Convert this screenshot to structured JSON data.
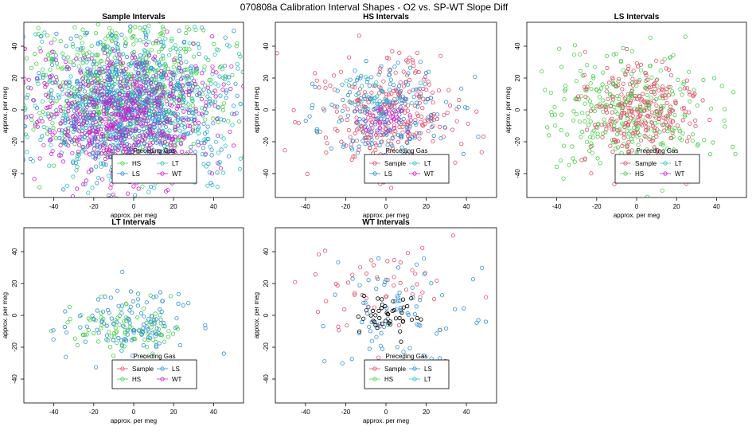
{
  "figure": {
    "title": "070808a   Calibration Interval Shapes - O2 vs. SP-WT Slope Diff"
  },
  "colors": {
    "Sample": "#e0506a",
    "HS": "#4ccf4c",
    "LS": "#2f8fd6",
    "LT": "#2ec4c4",
    "WT": "#cc22cc",
    "highlight": "#000000"
  },
  "chart_data": [
    {
      "type": "scatter",
      "id": "sample",
      "title": "Sample Intervals",
      "xlabel": "approx. per meg",
      "ylabel": "approx. per meg",
      "xlim": [
        -55,
        55
      ],
      "ylim": [
        -55,
        55
      ],
      "xticks": [
        -40,
        -20,
        0,
        20,
        40
      ],
      "yticks": [
        -40,
        -20,
        0,
        20,
        40
      ],
      "legend_title": "Preceding Gas",
      "legend_location": "bottom-center",
      "legend_entries": [
        "HS",
        "LT",
        "LS",
        "WT"
      ],
      "series": [
        {
          "name": "HS",
          "approx_n": 650,
          "center": [
            -4,
            14
          ],
          "spread": [
            24,
            24
          ]
        },
        {
          "name": "LT",
          "approx_n": 450,
          "center": [
            2,
            0
          ],
          "spread": [
            26,
            26
          ]
        },
        {
          "name": "LS",
          "approx_n": 650,
          "center": [
            -2,
            2
          ],
          "spread": [
            22,
            20
          ]
        },
        {
          "name": "WT",
          "approx_n": 650,
          "center": [
            -4,
            -4
          ],
          "spread": [
            24,
            22
          ]
        }
      ]
    },
    {
      "type": "scatter",
      "id": "hs",
      "title": "HS Intervals",
      "xlabel": "approx. per meg",
      "ylabel": "approx. per meg",
      "xlim": [
        -55,
        55
      ],
      "ylim": [
        -55,
        55
      ],
      "xticks": [
        -40,
        -20,
        0,
        20,
        40
      ],
      "yticks": [
        -40,
        -20,
        0,
        20,
        40
      ],
      "legend_title": "Preceding Gas",
      "legend_location": "bottom-center",
      "legend_entries": [
        "Sample",
        "LT",
        "LS",
        "WT"
      ],
      "series": [
        {
          "name": "Sample",
          "approx_n": 300,
          "center": [
            0,
            -2
          ],
          "spread": [
            18,
            18
          ]
        },
        {
          "name": "LS",
          "approx_n": 200,
          "center": [
            -2,
            0
          ],
          "spread": [
            16,
            15
          ]
        },
        {
          "name": "LT",
          "approx_n": 30,
          "center": [
            -4,
            4
          ],
          "spread": [
            8,
            8
          ]
        },
        {
          "name": "WT",
          "approx_n": 40,
          "center": [
            0,
            -6
          ],
          "spread": [
            6,
            5
          ]
        }
      ]
    },
    {
      "type": "scatter",
      "id": "ls",
      "title": "LS Intervals",
      "xlabel": "approx. per meg",
      "ylabel": "approx. per meg",
      "xlim": [
        -55,
        55
      ],
      "ylim": [
        -55,
        55
      ],
      "xticks": [
        -40,
        -20,
        0,
        20,
        40
      ],
      "yticks": [
        -40,
        -20,
        0,
        20,
        40
      ],
      "legend_title": "Preceding Gas",
      "legend_location": "bottom-center",
      "legend_entries": [
        "Sample",
        "LT",
        "HS",
        "WT"
      ],
      "series": [
        {
          "name": "HS",
          "approx_n": 320,
          "center": [
            0,
            0
          ],
          "spread": [
            20,
            18
          ]
        },
        {
          "name": "Sample",
          "approx_n": 250,
          "center": [
            2,
            2
          ],
          "spread": [
            14,
            15
          ]
        }
      ]
    },
    {
      "type": "scatter",
      "id": "lt",
      "title": "LT Intervals",
      "xlabel": "approx. per meg",
      "ylabel": "approx. per meg",
      "xlim": [
        -55,
        55
      ],
      "ylim": [
        -55,
        55
      ],
      "xticks": [
        -40,
        -20,
        0,
        20,
        40
      ],
      "yticks": [
        -40,
        -20,
        0,
        20,
        40
      ],
      "legend_title": "Preceding Gas",
      "legend_location": "bottom-center",
      "legend_entries": [
        "Sample",
        "LS",
        "HS",
        "WT"
      ],
      "series": [
        {
          "name": "HS",
          "approx_n": 100,
          "center": [
            -4,
            -8
          ],
          "spread": [
            12,
            8
          ]
        },
        {
          "name": "LS",
          "approx_n": 110,
          "center": [
            0,
            -4
          ],
          "spread": [
            14,
            10
          ]
        }
      ]
    },
    {
      "type": "scatter",
      "id": "wt",
      "title": "WT Intervals",
      "xlabel": "approx. per meg",
      "ylabel": "approx. per meg",
      "xlim": [
        -55,
        55
      ],
      "ylim": [
        -55,
        55
      ],
      "xticks": [
        -40,
        -20,
        0,
        20,
        40
      ],
      "yticks": [
        -40,
        -20,
        0,
        20,
        40
      ],
      "legend_title": "Preceding Gas",
      "legend_location": "bottom-center",
      "legend_entries": [
        "Sample",
        "LS",
        "HS",
        "LT"
      ],
      "series": [
        {
          "name": "Sample",
          "approx_n": 55,
          "center": [
            -8,
            18
          ],
          "spread": [
            20,
            20
          ]
        },
        {
          "name": "LS",
          "approx_n": 80,
          "center": [
            4,
            0
          ],
          "spread": [
            20,
            18
          ]
        },
        {
          "name": "highlight",
          "approx_n": 45,
          "center": [
            0,
            0
          ],
          "spread": [
            8,
            6
          ]
        }
      ]
    }
  ]
}
